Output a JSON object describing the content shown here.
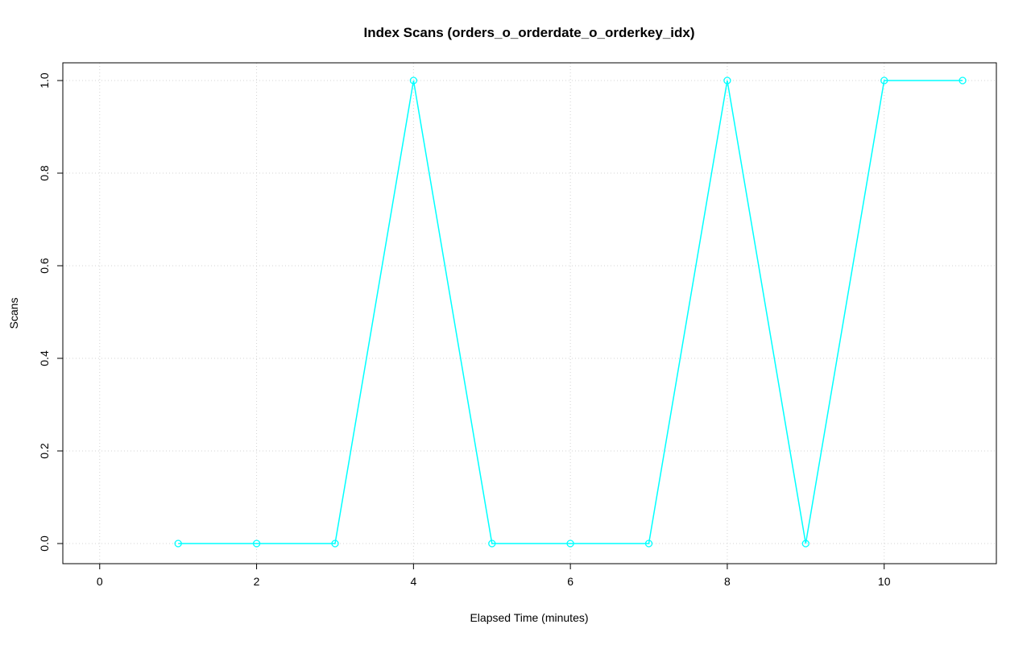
{
  "chart_data": {
    "type": "line",
    "title": "Index Scans (orders_o_orderdate_o_orderkey_idx)",
    "xlabel": "Elapsed Time (minutes)",
    "ylabel": "Scans",
    "x": [
      1,
      2,
      3,
      4,
      5,
      6,
      7,
      8,
      9,
      10,
      11
    ],
    "series": [
      {
        "name": "scans",
        "values": [
          0,
          0,
          0,
          1,
          0,
          0,
          0,
          1,
          0,
          1,
          1
        ]
      }
    ],
    "xticks": [
      0,
      2,
      4,
      6,
      8,
      10
    ],
    "xtick_labels": [
      "0",
      "2",
      "4",
      "6",
      "8",
      "10"
    ],
    "yticks": [
      0.0,
      0.2,
      0.4,
      0.6,
      0.8,
      1.0
    ],
    "ytick_labels": [
      "0.0",
      "0.2",
      "0.4",
      "0.6",
      "0.8",
      "1.0"
    ],
    "xlim": [
      -0.47,
      11.43
    ],
    "ylim": [
      -0.0435,
      1.0383
    ],
    "grid": true,
    "legend": "none",
    "line_color": "#00FFFF",
    "grid_color": "#D3D3D3",
    "axis_color": "#000000",
    "background_color": "#FFFFFF"
  }
}
